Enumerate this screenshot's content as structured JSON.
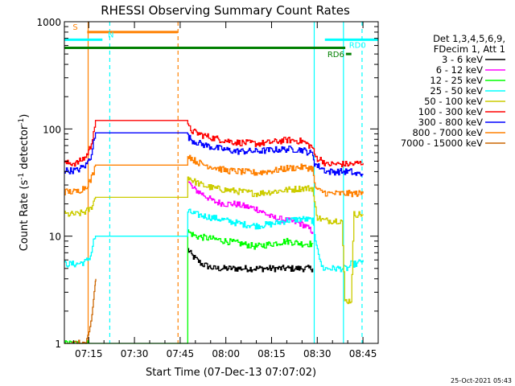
{
  "chart_data": {
    "type": "line",
    "title": "RHESSI Observing Summary Count Rates",
    "xlabel": "Start Time (07-Dec-13 07:07:02)",
    "ylabel_main": "Count Rate (s",
    "ylabel_sup1": "-1",
    "ylabel_mid": " detector",
    "ylabel_sup2": "-1",
    "ylabel_end": ")",
    "timestamp": "25-Oct-2021 05:43",
    "x_range_min": [
      427,
      530
    ],
    "y_range_log": [
      1,
      1000
    ],
    "y_scale": "log",
    "x_ticks": [
      {
        "t": 435,
        "label": "07:15"
      },
      {
        "t": 450,
        "label": "07:30"
      },
      {
        "t": 465,
        "label": "07:45"
      },
      {
        "t": 480,
        "label": "08:00"
      },
      {
        "t": 495,
        "label": "08:15"
      },
      {
        "t": 510,
        "label": "08:30"
      },
      {
        "t": 525,
        "label": "08:45"
      }
    ],
    "y_ticks": [
      {
        "v": 1,
        "label": "1"
      },
      {
        "v": 10,
        "label": "10"
      },
      {
        "v": 100,
        "label": "100"
      },
      {
        "v": 1000,
        "label": "1000"
      }
    ],
    "legend_position": "right",
    "legend_header": [
      "Det 1,3,4,5,6,9,",
      "FDecim 1, Att 1"
    ],
    "series": [
      {
        "name": "3 - 6 keV",
        "color": "#000000",
        "x": [
          467.5,
          469,
          472,
          476,
          480,
          485,
          490,
          495,
          500,
          505,
          508.5
        ],
        "y": [
          7.5,
          6.5,
          5.5,
          5.0,
          5.0,
          5.0,
          5.0,
          5.0,
          5.0,
          5.0,
          5.0
        ]
      },
      {
        "name": "6 - 12 keV",
        "color": "#ff00ff",
        "x": [
          467.5,
          469,
          472,
          476,
          480,
          483,
          486,
          490,
          495,
          500,
          505,
          508.5
        ],
        "y": [
          33,
          28,
          25,
          21,
          20,
          20,
          19,
          18,
          15,
          14,
          13,
          11
        ]
      },
      {
        "name": "12 - 25 keV",
        "color": "#00ff00",
        "x": [
          427,
          431,
          433,
          435,
          436,
          467.5,
          470,
          475,
          480,
          485,
          490,
          495,
          500,
          505,
          508.5
        ],
        "y": [
          1,
          1,
          1,
          1,
          1,
          11,
          10,
          9.5,
          9.0,
          8.5,
          8.0,
          8.5,
          9.0,
          8.5,
          8.5
        ]
      },
      {
        "name": "25 - 50 keV",
        "color": "#00ffff",
        "x": [
          427,
          431,
          434,
          435.5,
          436.5,
          437.2,
          467.5,
          470,
          475,
          480,
          485,
          490,
          495,
          500,
          505,
          508.5,
          509,
          510,
          511,
          512,
          513,
          514,
          515,
          516,
          517,
          518,
          519,
          520,
          521,
          522,
          523,
          524,
          525
        ],
        "y": [
          5.5,
          5.5,
          5.8,
          6.5,
          9.0,
          10,
          17,
          16,
          15,
          14,
          13,
          12.5,
          13,
          14,
          14.5,
          14,
          10,
          8.0,
          5.5,
          5.0,
          5.0,
          5.0,
          5.0,
          5.0,
          5.0,
          5.0,
          5.0,
          5.0,
          5.5,
          5.5,
          5.5,
          5.8,
          6.0
        ]
      },
      {
        "name": "50 - 100 keV",
        "color": "#cccc00",
        "x": [
          427,
          431,
          434,
          435.5,
          436.5,
          437.2,
          467.5,
          469,
          472,
          476,
          480,
          485,
          490,
          495,
          500,
          505,
          508.5,
          509,
          510,
          512,
          514,
          516,
          518,
          519,
          520,
          521,
          522,
          523,
          524,
          525
        ],
        "y": [
          16,
          16,
          17,
          18,
          21,
          23,
          36,
          33,
          30,
          28,
          27,
          26,
          25,
          26,
          27,
          28,
          28,
          20,
          15,
          14,
          14,
          14,
          14,
          2.5,
          2.5,
          2.5,
          16,
          16,
          16,
          16
        ]
      },
      {
        "name": "100 - 300 keV",
        "color": "#ff0000",
        "x": [
          427,
          431,
          434,
          435.5,
          436.5,
          437.2,
          467.5,
          469,
          472,
          476,
          480,
          483,
          487,
          490,
          493,
          496,
          500,
          505,
          508.5,
          509,
          510,
          511,
          512,
          513,
          514,
          516,
          518,
          519,
          520,
          521,
          522,
          523,
          524,
          525
        ],
        "y": [
          48,
          48,
          55,
          68,
          95,
          120,
          105,
          95,
          88,
          82,
          78,
          75,
          74,
          73,
          74,
          76,
          79,
          77,
          67,
          57,
          53,
          52,
          50,
          46,
          47,
          47,
          47,
          47,
          47,
          47,
          47,
          48,
          48,
          48
        ]
      },
      {
        "name": "300 - 800 keV",
        "color": "#0000ff",
        "x": [
          427,
          431,
          434,
          435.5,
          436.5,
          437.2,
          467.5,
          469,
          472,
          476,
          480,
          483,
          487,
          490,
          493,
          496,
          500,
          505,
          508.5,
          509,
          510,
          511,
          512,
          513,
          514,
          516,
          518,
          519,
          520,
          521,
          522,
          523,
          524,
          525
        ],
        "y": [
          41,
          41,
          46,
          55,
          75,
          92,
          85,
          78,
          72,
          67,
          64,
          62,
          62,
          62,
          63,
          64,
          65,
          64,
          58,
          48,
          45,
          44,
          42,
          40,
          40,
          40,
          40,
          40,
          40,
          40,
          38,
          38,
          38,
          38
        ]
      },
      {
        "name": "800 - 7000 keV",
        "color": "#ff8000",
        "x": [
          427,
          431,
          434,
          435.5,
          436.5,
          437.2,
          467.5,
          469,
          472,
          476,
          480,
          485,
          490,
          493,
          496,
          500,
          505,
          508.5,
          509,
          510,
          511,
          512,
          513,
          514,
          516,
          518,
          519,
          520,
          521,
          522,
          523,
          524,
          525
        ],
        "y": [
          26,
          26,
          29,
          33,
          40,
          46,
          58,
          52,
          47,
          44,
          41,
          40,
          39,
          40,
          41,
          43,
          44,
          43,
          30,
          27,
          26,
          26,
          25,
          25,
          25,
          25,
          25,
          25,
          25,
          25,
          25,
          25,
          25
        ]
      },
      {
        "name": "7000 - 15000 keV",
        "color": "#cc6600",
        "x": [
          427,
          434,
          435,
          436,
          436.5,
          437,
          437.3
        ],
        "y": [
          1,
          1,
          1.2,
          1.8,
          2.6,
          3.5,
          4.0
        ]
      }
    ],
    "attenuator_bars": [
      {
        "label": "S",
        "t_start": 434.5,
        "t_end": 464.2,
        "y": 800,
        "color": "#ff8000"
      },
      {
        "label": "N",
        "t_start": 427,
        "t_end": 439.5,
        "y": 680,
        "color": "#00ffff"
      },
      {
        "label": "",
        "t_start": 427,
        "t_end": 519.2,
        "y": 570,
        "color": "#008000"
      },
      {
        "label": "RD0",
        "t_start": 512.5,
        "t_end": 530,
        "y": 680,
        "color": "#00ffff"
      },
      {
        "label": "RD6",
        "t_start": 519.4,
        "t_end": 521.2,
        "y": 500,
        "color": "#008000"
      }
    ],
    "vlines": [
      {
        "t": 434.8,
        "color": "#ff8000",
        "style": "solid"
      },
      {
        "t": 441.9,
        "color": "#00ffff",
        "style": "dashed"
      },
      {
        "t": 464.3,
        "color": "#ff8000",
        "style": "dashed"
      },
      {
        "t": 509.0,
        "color": "#00ffff",
        "style": "solid"
      },
      {
        "t": 518.6,
        "color": "#00ffff",
        "style": "solid"
      },
      {
        "t": 524.7,
        "color": "#00ffff",
        "style": "dashed"
      }
    ]
  }
}
